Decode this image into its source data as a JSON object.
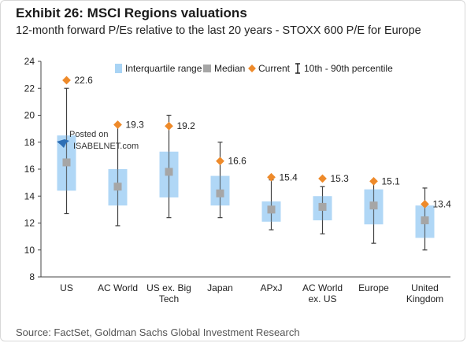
{
  "header": {
    "title": "Exhibit 26: MSCI Regions valuations",
    "subtitle": "12-month forward P/Es relative to the last 20 years - STOXX 600 P/E for Europe"
  },
  "footer": {
    "source": "Source: FactSet, Goldman Sachs Global Investment Research"
  },
  "watermark": {
    "line1": "Posted on",
    "line2": "ISABELNET.com"
  },
  "colors": {
    "box": "#a9d4f5",
    "median": "#a6a6a6",
    "current": "#ee8a2a",
    "whisker": "#404040"
  },
  "chart_data": {
    "type": "boxplot",
    "ylim": [
      8,
      24
    ],
    "yticks": [
      "8",
      "10",
      "12",
      "14",
      "16",
      "18",
      "20",
      "22",
      "24"
    ],
    "legend": [
      {
        "key": "iqr",
        "label": "Interquartile range"
      },
      {
        "key": "median",
        "label": "Median"
      },
      {
        "key": "current",
        "label": "Current"
      },
      {
        "key": "percentile",
        "label": "10th - 90th percentile"
      }
    ],
    "legend_position": "top",
    "categories": [
      {
        "name": [
          "US"
        ],
        "p10": 12.7,
        "q1": 14.4,
        "median": 16.5,
        "q3": 18.5,
        "p90": 22.0,
        "current": 22.6,
        "current_label": "22.6"
      },
      {
        "name": [
          "AC World"
        ],
        "p10": 11.8,
        "q1": 13.3,
        "median": 14.7,
        "q3": 16.0,
        "p90": 19.3,
        "current": 19.3,
        "current_label": "19.3"
      },
      {
        "name": [
          "US ex. Big",
          "Tech"
        ],
        "p10": 12.4,
        "q1": 13.9,
        "median": 15.8,
        "q3": 17.3,
        "p90": 20.0,
        "current": 19.2,
        "current_label": "19.2"
      },
      {
        "name": [
          "Japan"
        ],
        "p10": 12.4,
        "q1": 13.3,
        "median": 14.2,
        "q3": 15.5,
        "p90": 18.0,
        "current": 16.6,
        "current_label": "16.6"
      },
      {
        "name": [
          "APxJ"
        ],
        "p10": 11.5,
        "q1": 12.1,
        "median": 13.0,
        "q3": 13.6,
        "p90": 15.2,
        "current": 15.4,
        "current_label": "15.4"
      },
      {
        "name": [
          "AC World",
          "ex. US"
        ],
        "p10": 11.2,
        "q1": 12.2,
        "median": 13.2,
        "q3": 14.0,
        "p90": 14.7,
        "current": 15.3,
        "current_label": "15.3"
      },
      {
        "name": [
          "Europe"
        ],
        "p10": 10.5,
        "q1": 11.9,
        "median": 13.3,
        "q3": 14.5,
        "p90": 15.0,
        "current": 15.1,
        "current_label": "15.1"
      },
      {
        "name": [
          "United",
          "Kingdom"
        ],
        "p10": 10.0,
        "q1": 10.9,
        "median": 12.2,
        "q3": 13.3,
        "p90": 14.6,
        "current": 13.4,
        "current_label": "13.4"
      }
    ]
  }
}
